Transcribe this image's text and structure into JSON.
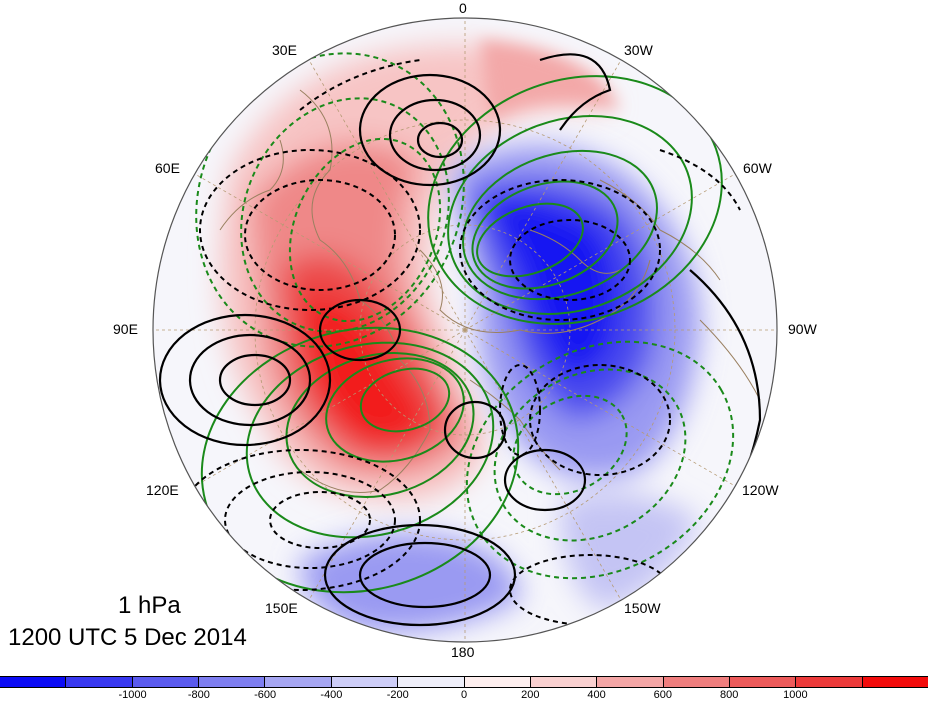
{
  "map": {
    "level_label": "1 hPa",
    "time_label": "1200 UTC 5 Dec 2014",
    "longitude_labels": {
      "lon_0": "0",
      "lon_30w": "30W",
      "lon_60w": "60W",
      "lon_90w": "90W",
      "lon_120w": "120W",
      "lon_150w": "150W",
      "lon_180": "180",
      "lon_150e": "150E",
      "lon_120e": "120E",
      "lon_90e": "90E",
      "lon_60e": "60E",
      "lon_30e": "30E"
    }
  },
  "colorbar": {
    "colors": [
      "#0b0bf5",
      "#3838f0",
      "#5a5aee",
      "#7e7ef0",
      "#a6a6f2",
      "#cdcdf7",
      "#eeeef9",
      "#fdeeee",
      "#f9d0d0",
      "#f4a6a6",
      "#ef7e7e",
      "#ec5a5a",
      "#ec3a3a",
      "#f20b0b"
    ],
    "tick_labels": [
      "-1000",
      "-800",
      "-600",
      "-400",
      "-200",
      "0",
      "200",
      "400",
      "600",
      "800",
      "1000"
    ]
  }
}
